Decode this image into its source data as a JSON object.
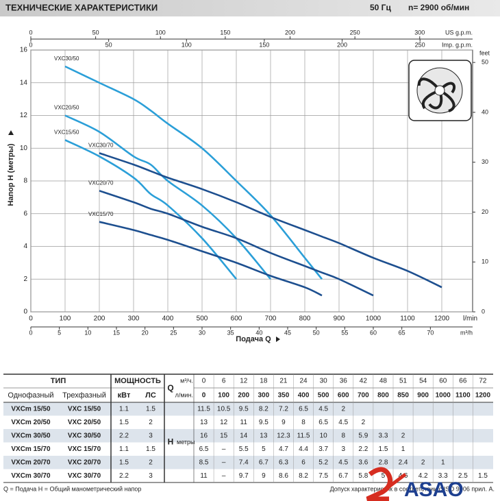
{
  "header": {
    "title": "ТЕХНИЧЕСКИЕ ХАРАКТЕРИСТИКИ",
    "frequency": "50 Гц",
    "speed": "n= 2900  об/мин"
  },
  "chart_data": {
    "type": "line",
    "y_label": "Напор H (метры)",
    "x_label": "Подача Q",
    "x_unit": "l/min",
    "y2_unit": "feet",
    "x": [
      100,
      200,
      300,
      350,
      400,
      500,
      600,
      700,
      800,
      850,
      900,
      1000,
      1100,
      1200
    ],
    "series": [
      {
        "name": "VXC30/50",
        "color": "#2b9fd8",
        "values": [
          15,
          14,
          13,
          12.3,
          11.5,
          10,
          8,
          5.9,
          3.3,
          2,
          null,
          null,
          null,
          null
        ]
      },
      {
        "name": "VXC20/50",
        "color": "#2b9fd8",
        "values": [
          12,
          11,
          9.5,
          9,
          8,
          6.5,
          4.5,
          2,
          null,
          null,
          null,
          null,
          null,
          null
        ]
      },
      {
        "name": "VXC15/50",
        "color": "#2b9fd8",
        "values": [
          10.5,
          9.5,
          8.2,
          7.2,
          6.5,
          4.5,
          2,
          null,
          null,
          null,
          null,
          null,
          null,
          null
        ]
      },
      {
        "name": "VXC30/70",
        "color": "#1d4f8f",
        "values": [
          null,
          9.7,
          9,
          8.6,
          8.2,
          7.5,
          6.7,
          5.8,
          5,
          4.6,
          4.2,
          3.3,
          2.5,
          1.5
        ]
      },
      {
        "name": "VXC20/70",
        "color": "#1d4f8f",
        "values": [
          null,
          7.4,
          6.7,
          6.3,
          6,
          5.2,
          4.5,
          3.6,
          2.8,
          2.4,
          2,
          1,
          null,
          null
        ]
      },
      {
        "name": "VXC15/70",
        "color": "#1d4f8f",
        "values": [
          null,
          5.5,
          5,
          4.7,
          4.4,
          3.7,
          3,
          2.2,
          1.5,
          1,
          null,
          null,
          null,
          null
        ]
      }
    ],
    "xlim": [
      0,
      1290
    ],
    "xticks": [
      0,
      100,
      200,
      300,
      400,
      500,
      600,
      700,
      800,
      900,
      1000,
      1100,
      1200
    ],
    "ylim": [
      0,
      16
    ],
    "yticks": [
      0,
      2,
      4,
      6,
      8,
      10,
      12,
      14,
      16
    ],
    "y2lim": [
      0,
      52.49
    ],
    "y2ticks": [
      0,
      10,
      20,
      30,
      40,
      50
    ],
    "grid": true,
    "extra_x_axes": [
      {
        "label": "US g.p.m.",
        "position": "top",
        "lim": [
          0,
          340.8
        ],
        "ticks": [
          0,
          50,
          100,
          150,
          200,
          250,
          300
        ]
      },
      {
        "label": "Imp. g.p.m.",
        "position": "top",
        "lim": [
          0,
          283.8
        ],
        "ticks": [
          0,
          50,
          100,
          150,
          200,
          250
        ]
      },
      {
        "label": "m³/h",
        "position": "bottom",
        "lim": [
          0,
          77.4
        ],
        "ticks": [
          0,
          5,
          10,
          15,
          20,
          25,
          30,
          35,
          40,
          45,
          50,
          55,
          60,
          65,
          70
        ]
      }
    ]
  },
  "table": {
    "type_header": "ТИП",
    "power_header": "МОЩНОСТЬ",
    "columns": [
      "Однофазный",
      "Трехфазный",
      "кВт",
      "ЛС"
    ],
    "q_label": "Q",
    "q_units": [
      "м³/ч.",
      "л/мин."
    ],
    "q_m3h": [
      0,
      6,
      12,
      18,
      21,
      24,
      30,
      36,
      42,
      48,
      51,
      54,
      60,
      66,
      72
    ],
    "q_lmin": [
      0,
      100,
      200,
      300,
      350,
      400,
      500,
      600,
      700,
      800,
      850,
      900,
      1000,
      1100,
      1200
    ],
    "h_label": "H",
    "h_units": "метры",
    "rows": [
      {
        "single": "VXCm 15/50",
        "three": "VXC 15/50",
        "kw": 1.1,
        "hp": 1.5,
        "h": [
          11.5,
          10.5,
          9.5,
          8.2,
          7.2,
          6.5,
          4.5,
          2,
          null,
          null,
          null,
          null,
          null,
          null,
          null
        ]
      },
      {
        "single": "VXCm 20/50",
        "three": "VXC 20/50",
        "kw": 1.5,
        "hp": 2,
        "h": [
          13,
          12,
          11,
          9.5,
          9,
          8,
          6.5,
          4.5,
          2,
          null,
          null,
          null,
          null,
          null,
          null
        ]
      },
      {
        "single": "VXCm 30/50",
        "three": "VXC 30/50",
        "kw": 2.2,
        "hp": 3,
        "h": [
          16,
          15,
          14,
          13,
          12.3,
          11.5,
          10,
          8,
          5.9,
          3.3,
          2,
          null,
          null,
          null,
          null
        ]
      },
      {
        "single": "VXCm 15/70",
        "three": "VXC 15/70",
        "kw": 1.1,
        "hp": 1.5,
        "h": [
          6.5,
          "–",
          5.5,
          5,
          4.7,
          4.4,
          3.7,
          3,
          2.2,
          1.5,
          1,
          null,
          null,
          null,
          null
        ]
      },
      {
        "single": "VXCm 20/70",
        "three": "VXC 20/70",
        "kw": 1.5,
        "hp": 2,
        "h": [
          8.5,
          "–",
          7.4,
          6.7,
          6.3,
          6,
          5.2,
          4.5,
          3.6,
          2.8,
          2.4,
          2,
          1,
          null,
          null
        ]
      },
      {
        "single": "VXCm 30/70",
        "three": "VXC 30/70",
        "kw": 2.2,
        "hp": 3,
        "h": [
          11,
          "–",
          9.7,
          9,
          8.6,
          8.2,
          7.5,
          6.7,
          5.8,
          5,
          4.6,
          4.2,
          3.3,
          2.5,
          1.5
        ]
      }
    ]
  },
  "footer": {
    "legend": "Q = Подача    H = Общий манометрический напор",
    "tolerance": "Допуск характеристик в соответствии с ISO 9906 прил. A."
  },
  "logo": "ASAO"
}
